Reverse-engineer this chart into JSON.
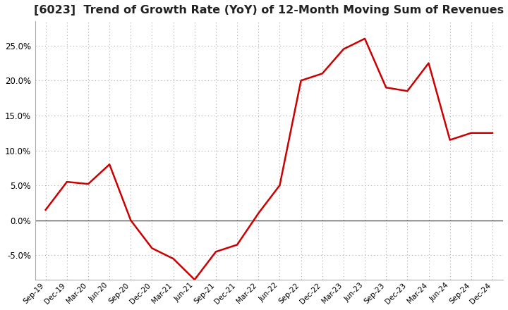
{
  "title": "[6023]  Trend of Growth Rate (YoY) of 12-Month Moving Sum of Revenues",
  "title_fontsize": 11.5,
  "line_color": "#cc0000",
  "line_width": 1.8,
  "background_color": "#ffffff",
  "grid_color": "#aaaaaa",
  "labels": [
    "Sep-19",
    "Dec-19",
    "Mar-20",
    "Jun-20",
    "Sep-20",
    "Dec-20",
    "Mar-21",
    "Jun-21",
    "Sep-21",
    "Dec-21",
    "Mar-22",
    "Jun-22",
    "Sep-22",
    "Dec-22",
    "Mar-23",
    "Jun-23",
    "Sep-23",
    "Dec-23",
    "Mar-24",
    "Jun-24",
    "Sep-24",
    "Dec-24"
  ],
  "values": [
    1.5,
    5.5,
    5.2,
    8.0,
    0.0,
    -4.0,
    -5.5,
    -8.5,
    -4.5,
    -3.5,
    1.0,
    5.0,
    20.0,
    21.0,
    24.5,
    26.0,
    19.0,
    18.5,
    22.5,
    11.5,
    12.5,
    12.5
  ],
  "ylim": [
    -8.5,
    28.5
  ],
  "yticks": [
    -5.0,
    0.0,
    5.0,
    10.0,
    15.0,
    20.0,
    25.0
  ],
  "zero_line_color": "#555555"
}
